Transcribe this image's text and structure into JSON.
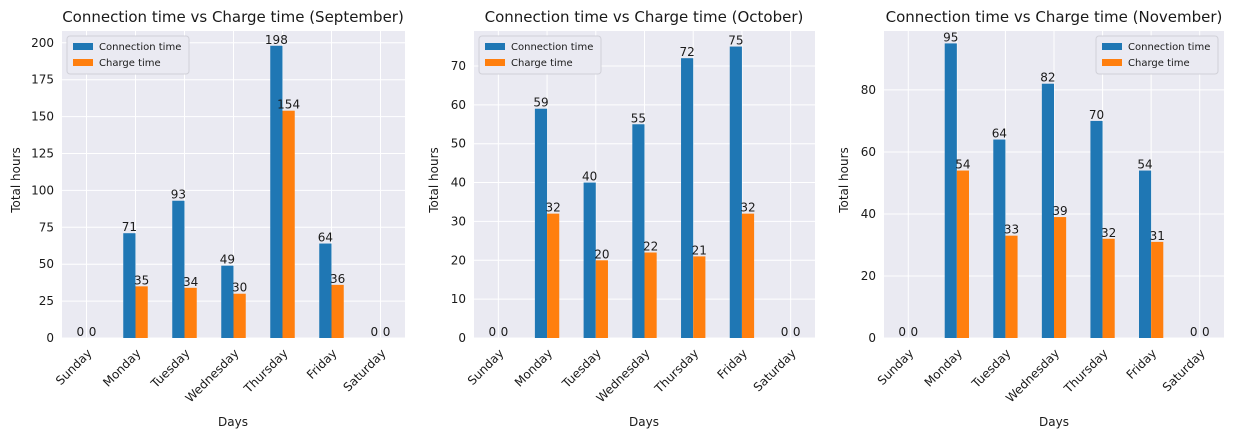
{
  "chart_data": [
    {
      "type": "bar",
      "title": "Connection time vs Charge time (September)",
      "xlabel": "Days",
      "ylabel": "Total hours",
      "categories": [
        "Sunday",
        "Monday",
        "Tuesday",
        "Wednesday",
        "Thursday",
        "Friday",
        "Saturday"
      ],
      "series": [
        {
          "name": "Connection time",
          "color": "#1f77b4",
          "values": [
            0,
            71,
            93,
            49,
            198,
            64,
            0
          ]
        },
        {
          "name": "Charge time",
          "color": "#ff7f0e",
          "values": [
            0,
            35,
            34,
            30,
            154,
            36,
            0
          ]
        }
      ],
      "ylim": [
        0,
        208
      ],
      "yticks": [
        0,
        25,
        50,
        75,
        100,
        125,
        150,
        175,
        200
      ],
      "legend": "upper-left",
      "grid": true
    },
    {
      "type": "bar",
      "title": "Connection time vs Charge time (October)",
      "xlabel": "Days",
      "ylabel": "Total hours",
      "categories": [
        "Sunday",
        "Monday",
        "Tuesday",
        "Wednesday",
        "Thursday",
        "Friday",
        "Saturday"
      ],
      "series": [
        {
          "name": "Connection time",
          "color": "#1f77b4",
          "values": [
            0,
            59,
            40,
            55,
            72,
            75,
            0
          ]
        },
        {
          "name": "Charge time",
          "color": "#ff7f0e",
          "values": [
            0,
            32,
            20,
            22,
            21,
            32,
            0
          ]
        }
      ],
      "ylim": [
        0,
        79
      ],
      "yticks": [
        0,
        10,
        20,
        30,
        40,
        50,
        60,
        70
      ],
      "legend": "upper-left",
      "grid": true
    },
    {
      "type": "bar",
      "title": "Connection time vs Charge time (November)",
      "xlabel": "Days",
      "ylabel": "Total hours",
      "categories": [
        "Sunday",
        "Monday",
        "Tuesday",
        "Wednesday",
        "Thursday",
        "Friday",
        "Saturday"
      ],
      "series": [
        {
          "name": "Connection time",
          "color": "#1f77b4",
          "values": [
            0,
            95,
            64,
            82,
            70,
            54,
            0
          ]
        },
        {
          "name": "Charge time",
          "color": "#ff7f0e",
          "values": [
            0,
            54,
            33,
            39,
            32,
            31,
            0
          ]
        }
      ],
      "ylim": [
        0,
        99
      ],
      "yticks": [
        0,
        20,
        40,
        60,
        80
      ],
      "legend": "upper-right",
      "grid": true
    }
  ]
}
